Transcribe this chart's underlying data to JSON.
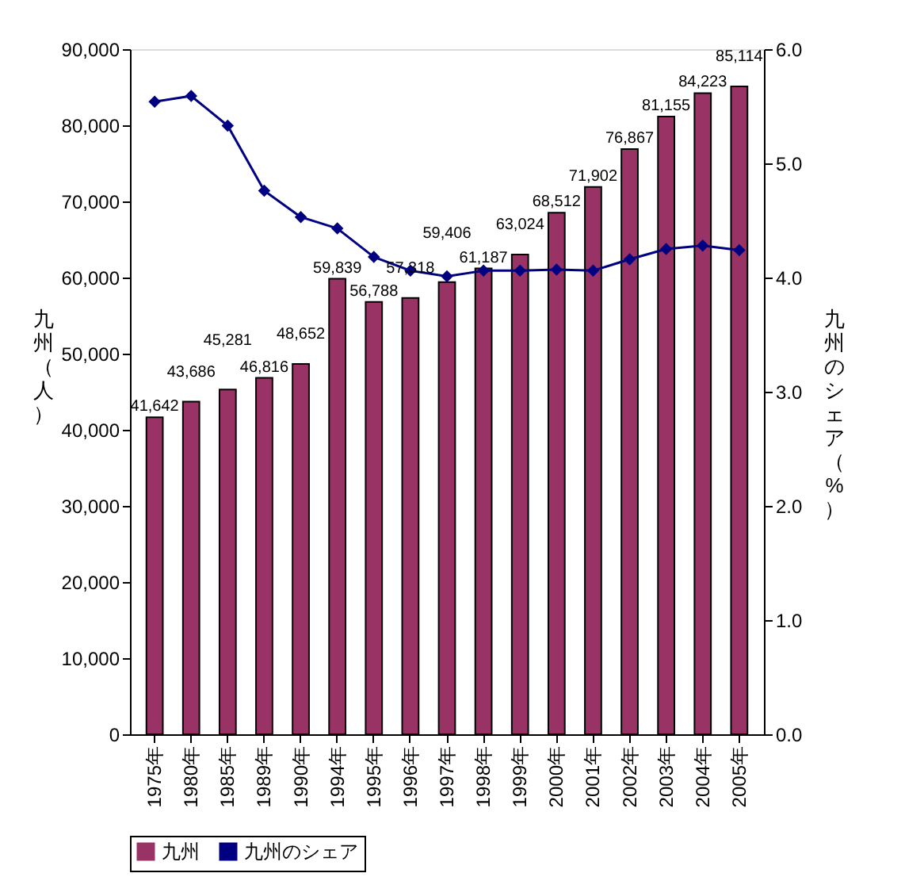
{
  "chart_data": {
    "type": "bar",
    "categories": [
      "1975年",
      "1980年",
      "1985年",
      "1989年",
      "1990年",
      "1994年",
      "1995年",
      "1996年",
      "1997年",
      "1998年",
      "1999年",
      "2000年",
      "2001年",
      "2002年",
      "2003年",
      "2004年",
      "2005年"
    ],
    "ylabel": "九州（人）",
    "y2label": "九州のシェア（%）",
    "series": [
      {
        "name": "九州",
        "color": "#993366",
        "values": [
          41642,
          43686,
          45281,
          46816,
          48652,
          59839,
          56788,
          57318,
          59406,
          61187,
          63024,
          68512,
          71902,
          76867,
          81155,
          84223,
          85114
        ],
        "value_labels": [
          "41,642",
          "43,686",
          "45,281",
          "46,816",
          "48,652",
          "59,839",
          "56,788",
          "57,318",
          "59,406",
          "61,187",
          "63,024",
          "68,512",
          "71,902",
          "76,867",
          "81,155",
          "84,223",
          "85,114"
        ]
      },
      {
        "name": "九州のシェア",
        "type": "line",
        "axis": "y2",
        "color": "#000080",
        "marker": "diamond",
        "values": [
          5.54,
          5.59,
          5.33,
          4.76,
          4.53,
          4.43,
          4.18,
          4.06,
          4.01,
          4.06,
          4.06,
          4.07,
          4.06,
          4.16,
          4.25,
          4.28,
          4.24
        ]
      }
    ],
    "ylim": [
      0,
      90000
    ],
    "yticks": [
      {
        "value": 0,
        "label": "0"
      },
      {
        "value": 10000,
        "label": "10,000"
      },
      {
        "value": 20000,
        "label": "20,000"
      },
      {
        "value": 30000,
        "label": "30,000"
      },
      {
        "value": 40000,
        "label": "40,000"
      },
      {
        "value": 50000,
        "label": "50,000"
      },
      {
        "value": 60000,
        "label": "60,000"
      },
      {
        "value": 70000,
        "label": "70,000"
      },
      {
        "value": 80000,
        "label": "80,000"
      },
      {
        "value": 90000,
        "label": "90,000"
      }
    ],
    "y2lim": [
      0,
      6
    ],
    "y2ticks": [
      {
        "value": 0,
        "label": "0.0"
      },
      {
        "value": 1,
        "label": "1.0"
      },
      {
        "value": 2,
        "label": "2.0"
      },
      {
        "value": 3,
        "label": "3.0"
      },
      {
        "value": 4,
        "label": "4.0"
      },
      {
        "value": 5,
        "label": "5.0"
      },
      {
        "value": 6,
        "label": "6.0"
      }
    ],
    "grid": false,
    "legend": "bottom"
  }
}
